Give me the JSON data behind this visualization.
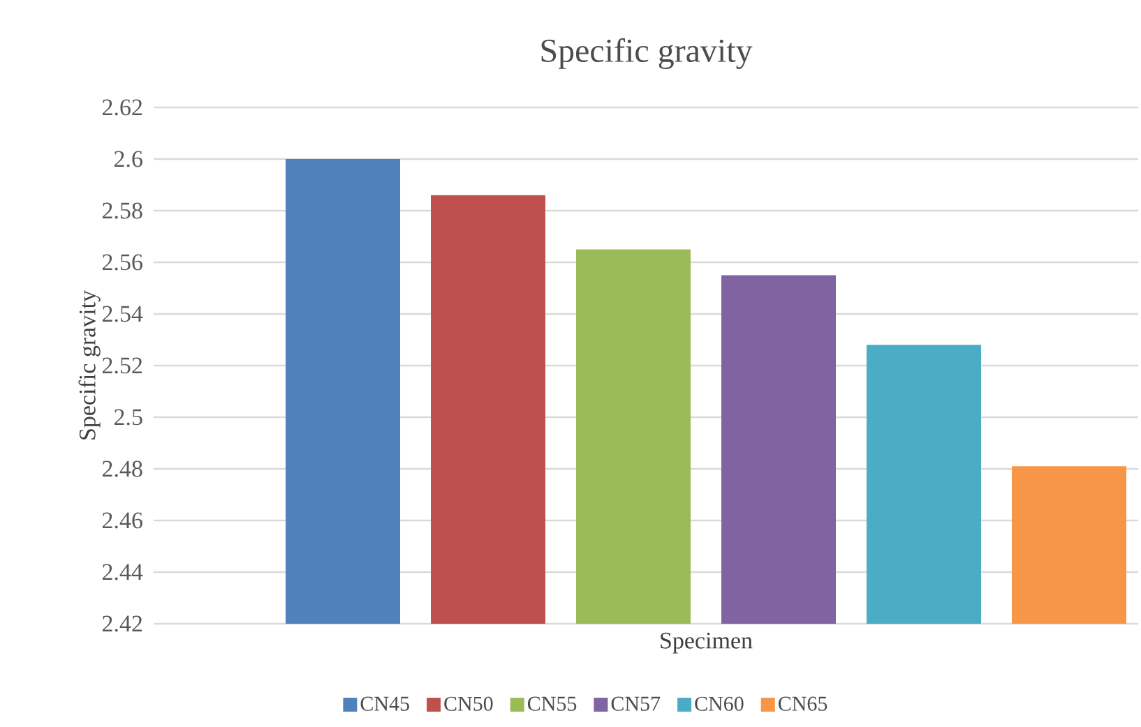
{
  "chart_data": {
    "type": "bar",
    "title": "Specific gravity",
    "xlabel": "Specimen",
    "ylabel": "Specific gravity",
    "categories": [
      null
    ],
    "series": [
      {
        "name": "CN45",
        "color": "#4f81bd",
        "values": [
          2.6
        ]
      },
      {
        "name": "CN50",
        "color": "#c0504d",
        "values": [
          2.586
        ]
      },
      {
        "name": "CN55",
        "color": "#9bbb59",
        "values": [
          2.565
        ]
      },
      {
        "name": "CN57",
        "color": "#8064a2",
        "values": [
          2.555
        ]
      },
      {
        "name": "CN60",
        "color": "#4bacc6",
        "values": [
          2.528
        ]
      },
      {
        "name": "CN65",
        "color": "#f79646",
        "values": [
          2.481
        ]
      }
    ],
    "ylim": [
      2.42,
      2.62
    ],
    "yticks": [
      2.42,
      2.44,
      2.46,
      2.48,
      2.5,
      2.52,
      2.54,
      2.56,
      2.58,
      2.6,
      2.62
    ],
    "grid": "y",
    "legend": "bottom"
  }
}
